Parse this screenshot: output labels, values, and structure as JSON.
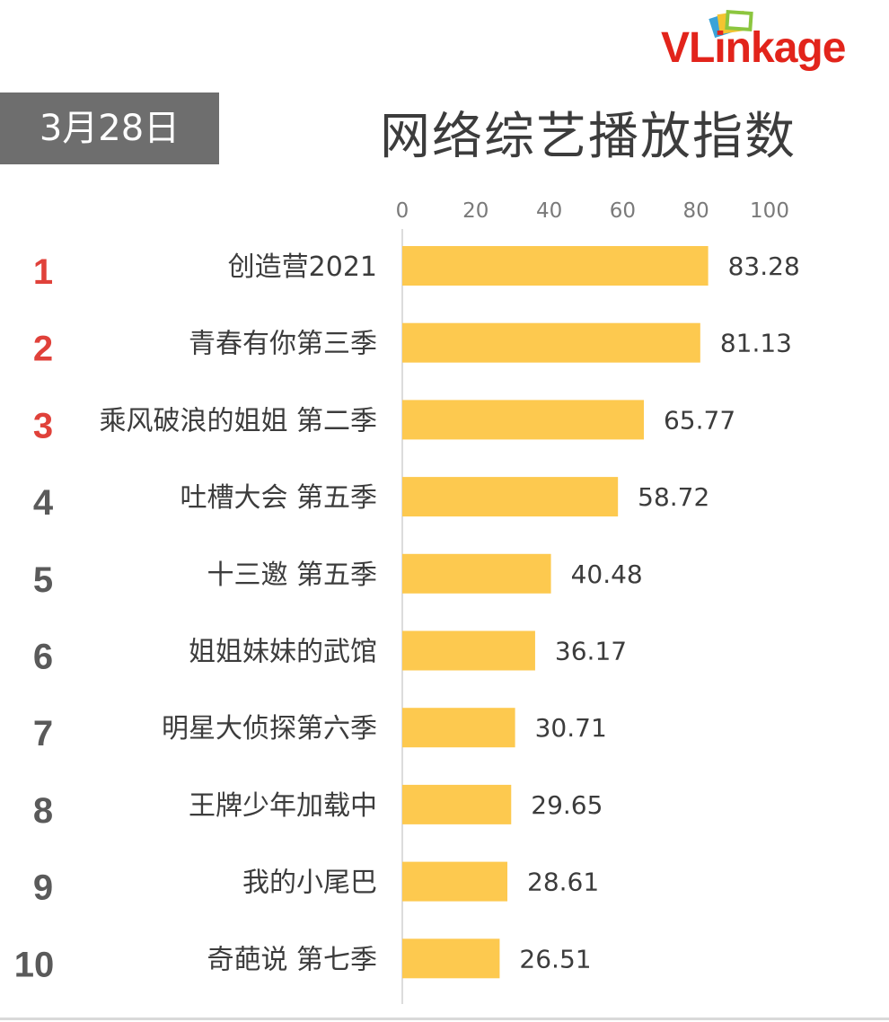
{
  "header": {
    "date": "3月28日",
    "title": "网络综艺播放指数",
    "logo_text": "VLinkage"
  },
  "colors": {
    "bar": "#fdc94f",
    "rank_top3": "#e0413a",
    "rank_other": "#5a5a5a",
    "label": "#3c3c3c",
    "axis_tick": "#7a7a7a",
    "date_box_bg": "#6e6e6e"
  },
  "chart_data": {
    "type": "bar",
    "orientation": "horizontal",
    "title": "网络综艺播放指数",
    "xlim": [
      0,
      100
    ],
    "x_ticks": [
      "0",
      "20",
      "40",
      "60",
      "80",
      "100"
    ],
    "grid": false,
    "ranks": [
      "1",
      "2",
      "3",
      "4",
      "5",
      "6",
      "7",
      "8",
      "9",
      "10"
    ],
    "categories": [
      "创造营2021",
      "青春有你第三季",
      "乘风破浪的姐姐 第二季",
      "吐槽大会 第五季",
      "十三邀 第五季",
      "姐姐妹妹的武馆",
      "明星大侦探第六季",
      "王牌少年加载中",
      "我的小尾巴",
      "奇葩说 第七季"
    ],
    "values": [
      83.28,
      81.13,
      65.77,
      58.72,
      40.48,
      36.17,
      30.71,
      29.65,
      28.61,
      26.51
    ],
    "value_labels": [
      "83.28",
      "81.13",
      "65.77",
      "58.72",
      "40.48",
      "36.17",
      "30.71",
      "29.65",
      "28.61",
      "26.51"
    ]
  }
}
